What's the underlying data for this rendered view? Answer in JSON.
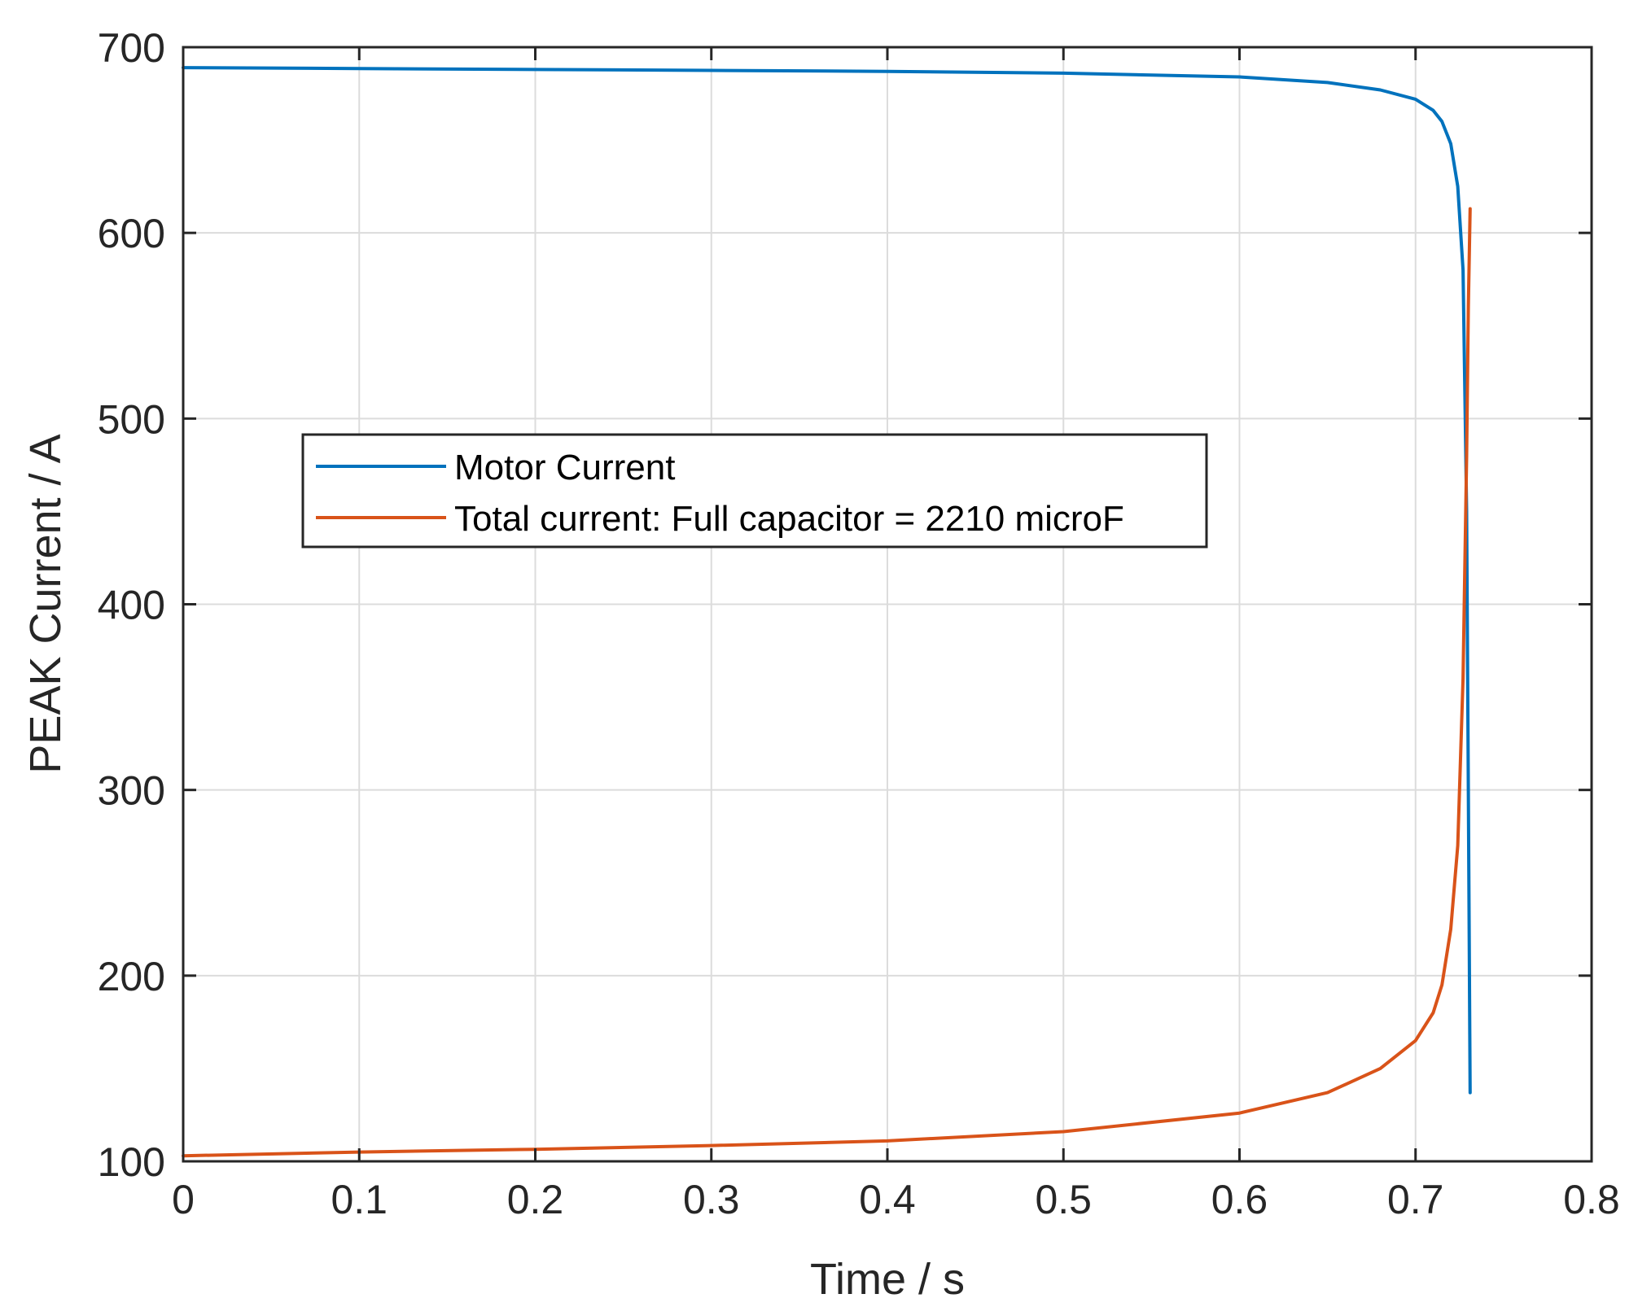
{
  "chart_data": {
    "type": "line",
    "title": "",
    "xlabel": "Time / s",
    "ylabel": "PEAK Current / A",
    "xlim": [
      0,
      0.8
    ],
    "ylim": [
      100,
      700
    ],
    "xticks": [
      "0",
      "0.1",
      "0.2",
      "0.3",
      "0.4",
      "0.5",
      "0.6",
      "0.7",
      "0.8"
    ],
    "yticks": [
      "100",
      "200",
      "300",
      "400",
      "500",
      "600",
      "700"
    ],
    "grid": true,
    "legend_position": "center-left",
    "colors": {
      "axes": "#262626",
      "grid": "#dcdcdc"
    },
    "series": [
      {
        "name": "Motor Current",
        "color": "#0072BD",
        "points": [
          [
            0,
            689
          ],
          [
            0.1,
            688.5
          ],
          [
            0.2,
            688
          ],
          [
            0.3,
            687.5
          ],
          [
            0.4,
            687
          ],
          [
            0.5,
            686
          ],
          [
            0.6,
            684
          ],
          [
            0.65,
            681
          ],
          [
            0.68,
            677
          ],
          [
            0.7,
            672
          ],
          [
            0.71,
            666
          ],
          [
            0.715,
            660
          ],
          [
            0.72,
            648
          ],
          [
            0.724,
            625
          ],
          [
            0.727,
            580
          ],
          [
            0.729,
            450
          ],
          [
            0.73,
            300
          ],
          [
            0.731,
            137
          ]
        ]
      },
      {
        "name": "Total current: Full capacitor = 2210 microF",
        "color": "#D95319",
        "points": [
          [
            0,
            103
          ],
          [
            0.1,
            105
          ],
          [
            0.2,
            106.5
          ],
          [
            0.3,
            108.5
          ],
          [
            0.4,
            111
          ],
          [
            0.5,
            116
          ],
          [
            0.6,
            126
          ],
          [
            0.65,
            137
          ],
          [
            0.68,
            150
          ],
          [
            0.7,
            165
          ],
          [
            0.71,
            180
          ],
          [
            0.715,
            195
          ],
          [
            0.72,
            225
          ],
          [
            0.724,
            270
          ],
          [
            0.727,
            360
          ],
          [
            0.729,
            480
          ],
          [
            0.73,
            560
          ],
          [
            0.731,
            613
          ]
        ]
      }
    ]
  }
}
